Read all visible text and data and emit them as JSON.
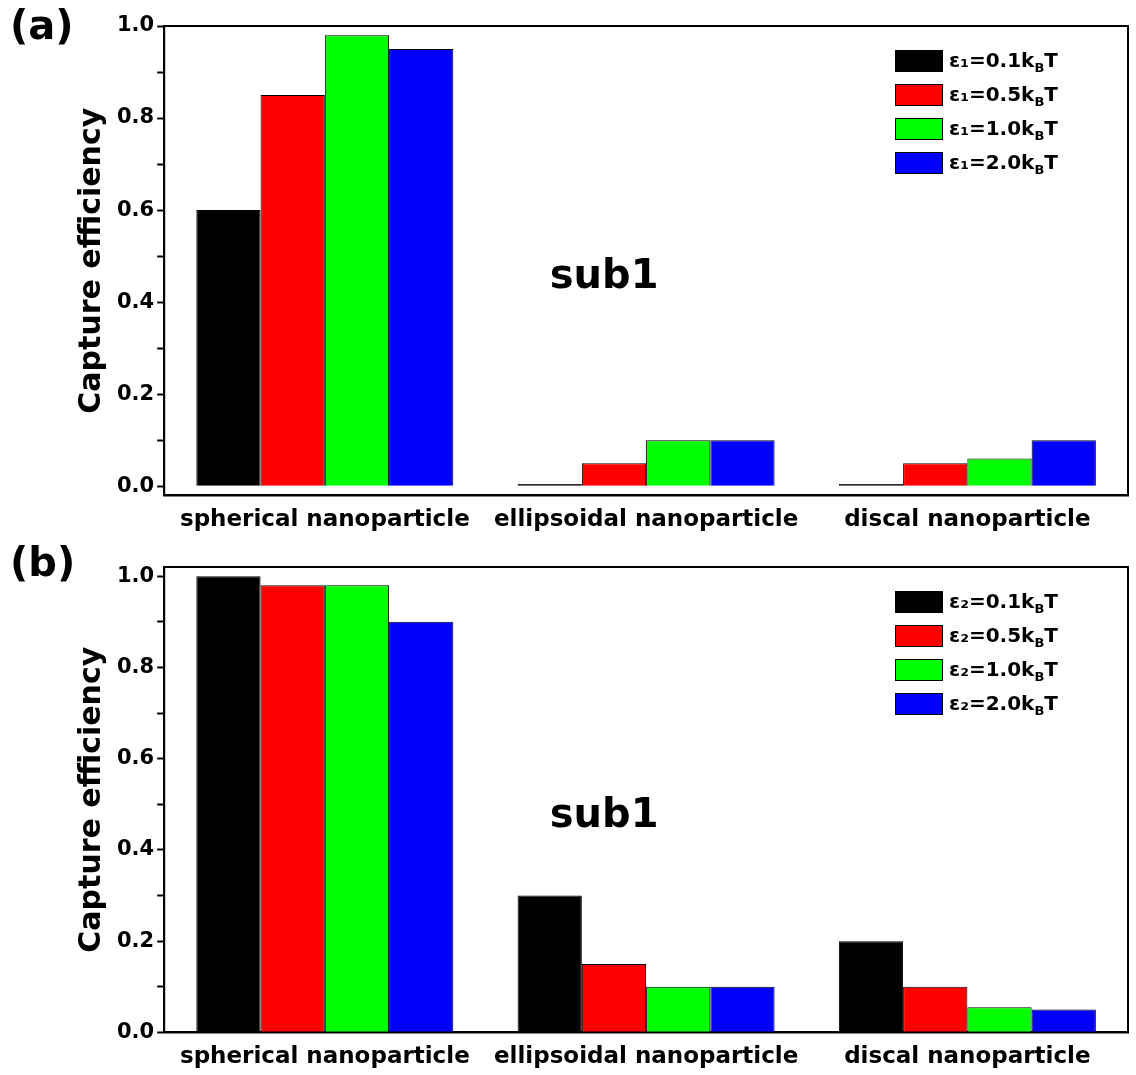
{
  "chart_data": [
    {
      "type": "bar",
      "title": "(a)",
      "ylabel": "Capture efficiency",
      "annotations": [
        "sub1"
      ],
      "categories": [
        "spherical nanoparticle",
        "ellipsoidal nanoparticle",
        "discal nanoparticle"
      ],
      "series": [
        {
          "name": "ε₁=0.1k$_{B}$T",
          "color": "#000000",
          "values": [
            0.6,
            0.005,
            0.005
          ]
        },
        {
          "name": "ε₁=0.5k$_{B}$T",
          "color": "#ff0000",
          "values": [
            0.85,
            0.05,
            0.05
          ]
        },
        {
          "name": "ε₁=1.0k$_{B}$T",
          "color": "#00ff00",
          "values": [
            0.98,
            0.1,
            0.06
          ]
        },
        {
          "name": "ε₁=2.0k$_{B}$T",
          "color": "#0000ff",
          "values": [
            0.95,
            0.1,
            0.1
          ]
        }
      ],
      "ylim": [
        -0.02,
        1.0
      ],
      "yticks": [
        {
          "value": 0,
          "label": "0.0"
        },
        {
          "value": 0.1,
          "label": null
        },
        0.2,
        {
          "value": 0.3,
          "label": null
        },
        0.4,
        {
          "value": 0.5,
          "label": null
        },
        0.6,
        {
          "value": 0.7,
          "label": null
        },
        0.8,
        {
          "value": 0.9,
          "label": null
        },
        {
          "value": 1,
          "label": "1.0"
        }
      ],
      "grid": false,
      "legend": "top right"
    },
    {
      "type": "bar",
      "title": "(b)",
      "ylabel": "Capture efficiency",
      "annotations": [
        "sub1"
      ],
      "categories": [
        "spherical nanoparticle",
        "ellipsoidal nanoparticle",
        "discal nanoparticle"
      ],
      "series": [
        {
          "name": "ε₂=0.1k$_{B}$T",
          "color": "#000000",
          "values": [
            1.0,
            0.3,
            0.2
          ]
        },
        {
          "name": "ε₂=0.5k$_{B}$T",
          "color": "#ff0000",
          "values": [
            0.98,
            0.15,
            0.1
          ]
        },
        {
          "name": "ε₂=1.0k$_{B}$T",
          "color": "#00ff00",
          "values": [
            0.98,
            0.1,
            0.055
          ]
        },
        {
          "name": "ε₂=2.0k$_{B}$T",
          "color": "#0000ff",
          "values": [
            0.9,
            0.1,
            0.05
          ]
        }
      ],
      "ylim": [
        0,
        1.02
      ],
      "yticks": [
        {
          "value": 0,
          "label": "0.0"
        },
        {
          "value": 0.1,
          "label": null
        },
        0.2,
        {
          "value": 0.3,
          "label": null
        },
        0.4,
        {
          "value": 0.5,
          "label": null
        },
        0.6,
        {
          "value": 0.7,
          "label": null
        },
        0.8,
        {
          "value": 0.9,
          "label": null
        },
        {
          "value": 1,
          "label": "1.0"
        }
      ],
      "grid": false,
      "legend": "top right"
    }
  ]
}
